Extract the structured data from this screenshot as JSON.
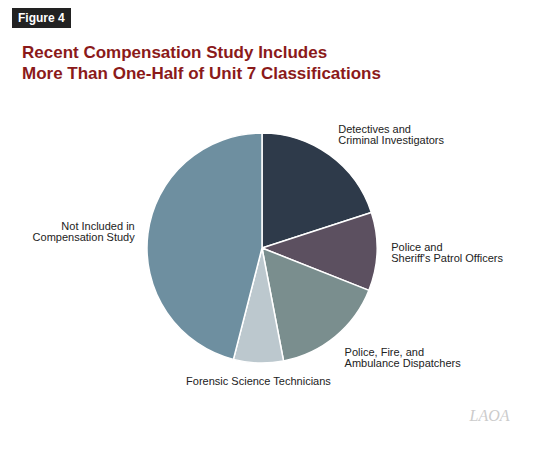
{
  "chart_data": {
    "type": "pie",
    "title": "Recent Compensation Study Includes\nMore Than One-Half of Unit 7 Classifications",
    "categories": [
      "Detectives and\nCriminal Investigators",
      "Police and\nSheriff's Patrol Officers",
      "Police, Fire, and\nAmbulance Dispatchers",
      "Forensic Science Technicians",
      "Not Included in\nCompensation Study"
    ],
    "values": [
      20,
      11,
      16,
      7,
      46
    ],
    "colors": [
      "#2e3a4a",
      "#5c5060",
      "#7a8e8e",
      "#bcc8ce",
      "#6e8fa0"
    ],
    "annotations": [
      "Figure 4",
      "LAOA"
    ],
    "legend": false,
    "data_labels": false
  }
}
